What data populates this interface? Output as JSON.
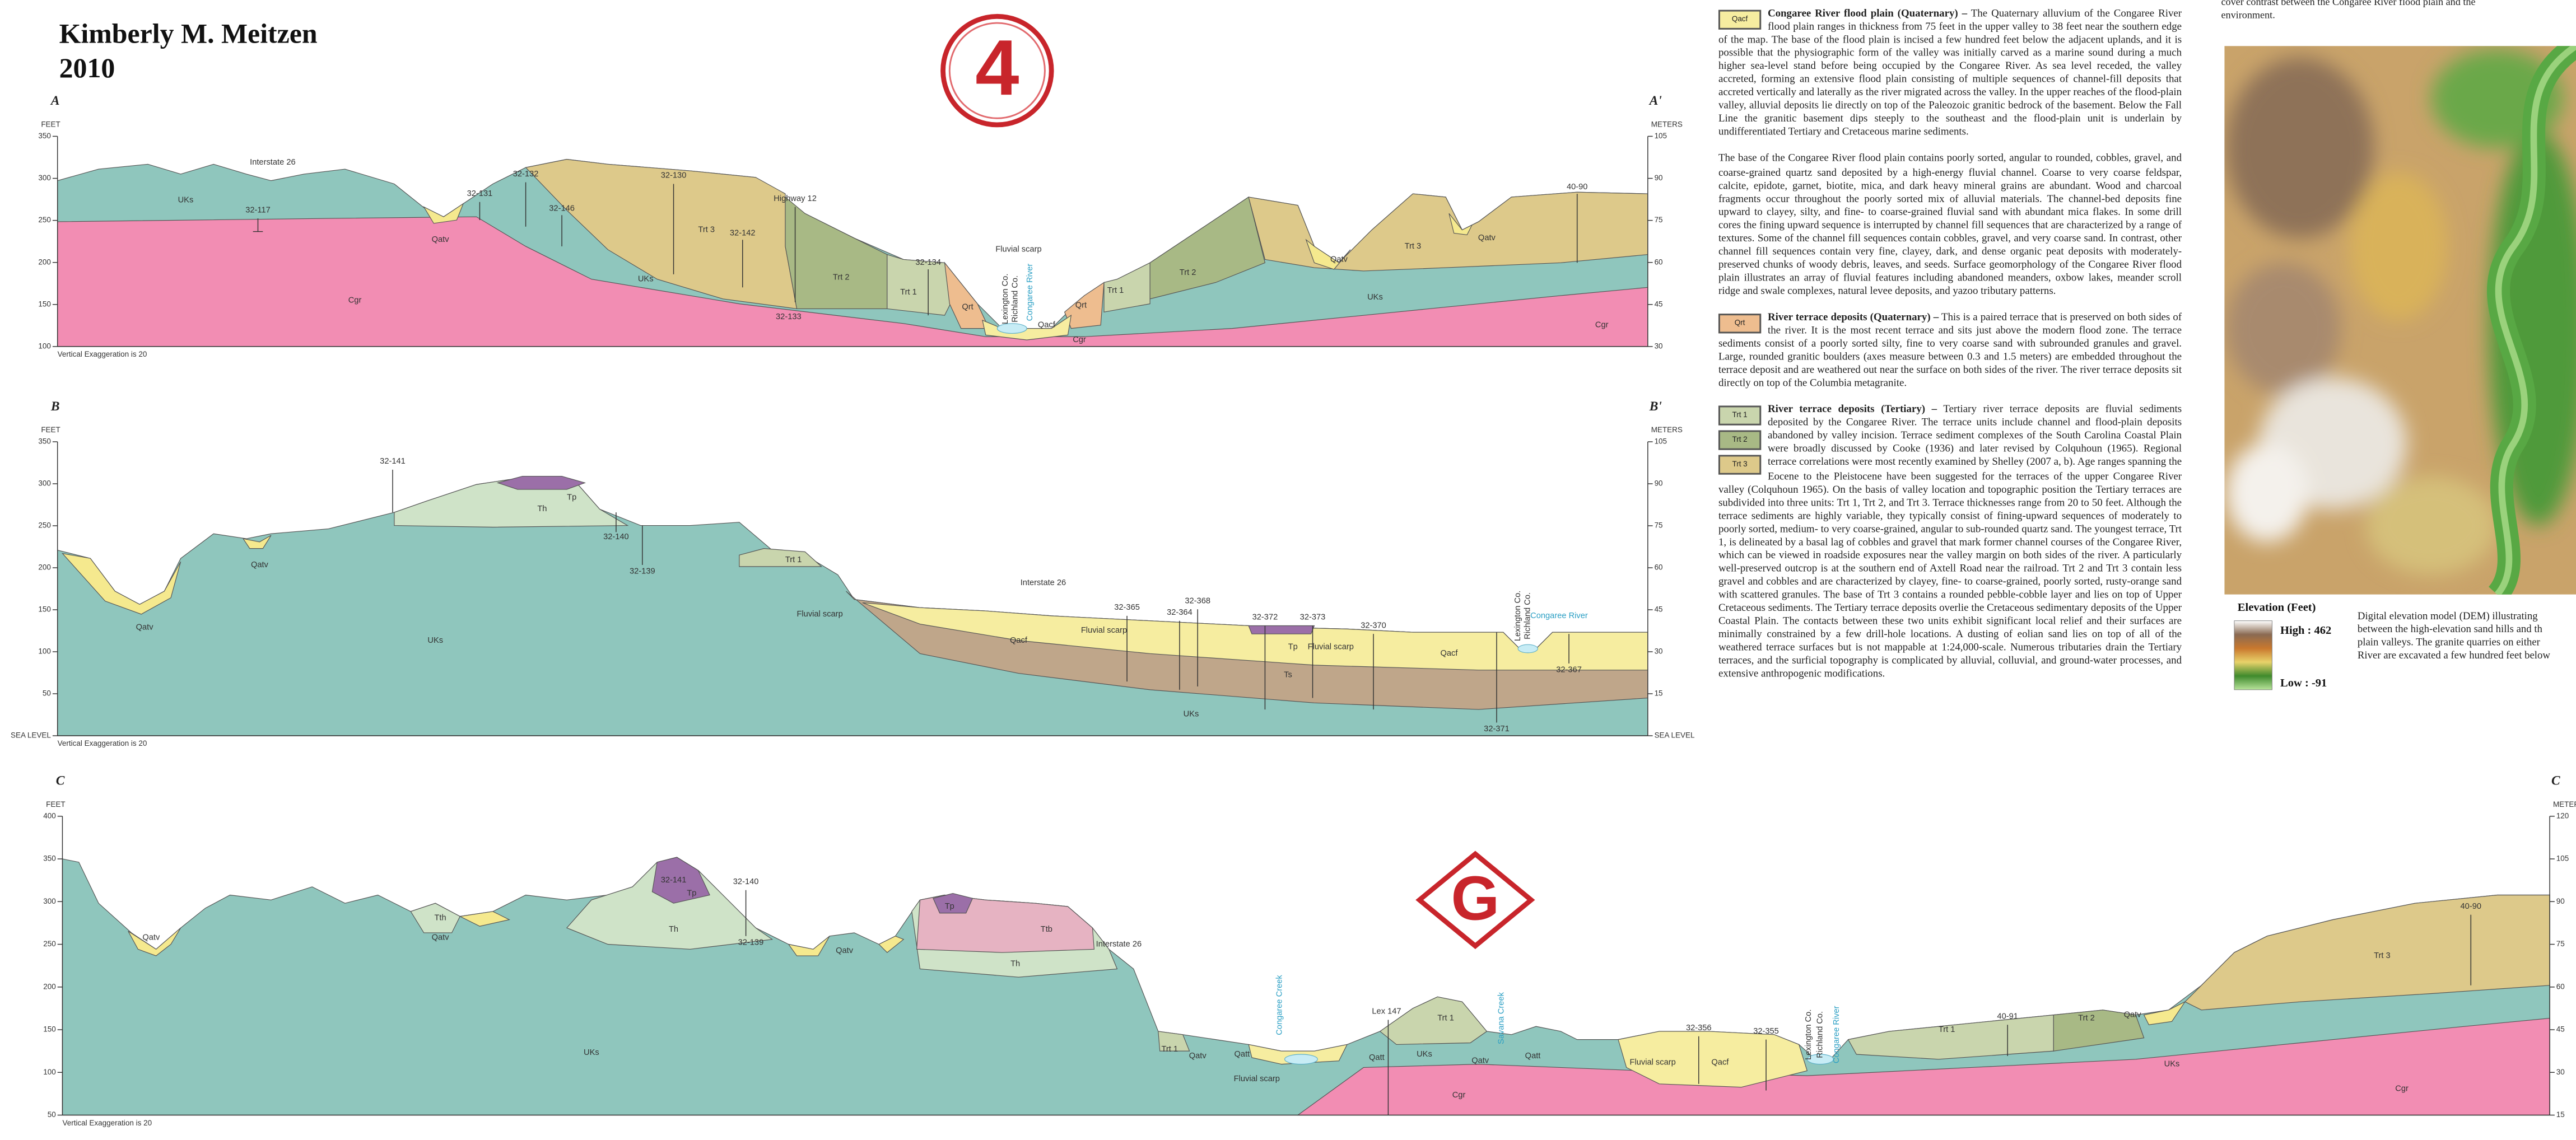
{
  "header": {
    "author": "Kimberly M. Meitzen",
    "year": "2010",
    "badge_top": "4",
    "badge_bottom": "G"
  },
  "sections": [
    {
      "start": "A",
      "end": "A'",
      "left_unit": "FEET",
      "right_unit": "METERS",
      "feet_ticks": [
        350,
        300,
        250,
        200,
        150,
        100
      ],
      "meter_ticks": [
        105,
        90,
        75,
        60,
        45,
        30
      ],
      "note": "Vertical Exaggeration is 20",
      "labels": [
        "Interstate 26",
        "32-117",
        "UKs",
        "Qatv",
        "32-131",
        "32-132",
        "32-146",
        "32-130",
        "Trt 3",
        "32-142",
        "Highway 12",
        "Trt 2",
        "32-133",
        "Trt 1",
        "32-134",
        "Fluvial scarp",
        "Qrt",
        "Qacf",
        "Cgr",
        "Qrt",
        "Trt 1",
        "Trt 2",
        "Qatv",
        "Trt 3",
        "Qatv",
        "40-90",
        "UKs",
        "UKs",
        "Cgr",
        "Cgr",
        "Lexington Co.",
        "Richland Co.",
        "Congaree River"
      ]
    },
    {
      "start": "B",
      "end": "B'",
      "left_unit": "FEET",
      "right_unit": "METERS",
      "feet_ticks": [
        350,
        300,
        250,
        200,
        150,
        100,
        50,
        "SEA LEVEL"
      ],
      "meter_ticks": [
        105,
        90,
        75,
        60,
        45,
        30,
        15,
        "SEA LEVEL"
      ],
      "note": "Vertical Exaggeration is 20",
      "labels": [
        "32-141",
        "Th",
        "Tp",
        "32-140",
        "32-139",
        "Trt 1",
        "Qatv",
        "Qatv",
        "UKs",
        "Fluvial scarp",
        "Interstate 26",
        "32-365",
        "32-364",
        "32-368",
        "Qacf",
        "Fluvial scarp",
        "32-372",
        "32-373",
        "Tp",
        "Fluvial scarp",
        "32-370",
        "Qacf",
        "Ts",
        "UKs",
        "Congaree River",
        "32-367",
        "32-371",
        "Lexington Co.",
        "Richland Co."
      ]
    },
    {
      "start": "C",
      "end": "C",
      "left_unit": "FEET",
      "right_unit": "METERS",
      "feet_ticks": [
        400,
        350,
        300,
        250,
        200,
        150,
        100,
        50
      ],
      "meter_ticks": [
        120,
        105,
        90,
        75,
        60,
        45,
        30,
        15
      ],
      "note": "Vertical Exaggeration is 20",
      "labels": [
        "Qatv",
        "Tth",
        "Qatv",
        "32-141",
        "Tp",
        "Th",
        "32-140",
        "32-139",
        "Qatv",
        "Tp",
        "Ttb",
        "Th",
        "Interstate 26",
        "UKs",
        "Trt 1",
        "Qatv",
        "Qatt",
        "Fluvial scarp",
        "Congaree Creek",
        "Lex 147",
        "Trt 1",
        "UKs",
        "Qatt",
        "Qatv",
        "Qatt",
        "Savana Creek",
        "Cgr",
        "Fluvial scarp",
        "Qacf",
        "32-356",
        "32-355",
        "Lexington Co.",
        "Richland Co.",
        "Congaree River",
        "Trt 1",
        "40-91",
        "Trt 2",
        "Qatv",
        "UKs",
        "Cgr",
        "40-90",
        "Trt 3"
      ]
    }
  ],
  "descriptions": [
    {
      "codes": [
        "Qacf"
      ],
      "heading": "Congaree River flood plain (Quaternary) –",
      "paragraphs": [
        "The Quaternary alluvium of the Congaree River flood plain ranges in thickness from 75 feet in the upper valley to 38 feet near the southern edge of the map. The base of the flood plain is incised a few hundred feet below the adjacent uplands, and it is possible that the physiographic form of the valley was initially carved as a marine sound during a much higher sea-level stand before being occupied by the Congaree River. As sea level receded, the valley accreted, forming an extensive flood plain consisting of multiple sequences of channel-fill deposits that accreted vertically and laterally as the river migrated across the valley. In the upper reaches of the flood-plain valley, alluvial deposits lie directly on top of the Paleozoic granitic bedrock of the basement. Below the Fall Line the granitic basement dips steeply to the southeast and the flood-plain unit is underlain by undifferentiated Tertiary and Cretaceous marine sediments.",
        "The base of the Congaree River flood plain contains poorly sorted, angular to rounded, cobbles, gravel, and coarse-grained quartz sand deposited by a high-energy fluvial channel. Coarse to very coarse feldspar, calcite, epidote, garnet, biotite, mica, and dark heavy mineral grains are abundant. Wood and charcoal fragments occur throughout the poorly sorted mix of alluvial materials. The channel-bed deposits fine upward to clayey, silty, and fine- to coarse-grained fluvial sand with abundant mica flakes. In some drill cores the fining upward sequence is interrupted by channel fill sequences that are characterized by a range of textures. Some of the channel fill sequences contain cobbles, gravel, and very coarse sand. In contrast, other channel fill sequences contain very fine, clayey, dark, and dense organic peat deposits with moderately-preserved chunks of woody debris, leaves, and seeds. Surface geomorphology of the Congaree River flood plain illustrates an array of fluvial features including abandoned meanders, oxbow lakes, meander scroll ridge and swale complexes, natural levee deposits, and yazoo tributary patterns."
      ]
    },
    {
      "codes": [
        "Qrt"
      ],
      "heading": "River terrace deposits (Quaternary) –",
      "paragraphs": [
        "This is a paired terrace that is preserved on both sides of the river. It is the most recent terrace and sits just above the modern flood zone. The terrace sediments consist of a poorly sorted silty, fine to very coarse sand with subrounded granules and gravel. Large, rounded granitic boulders (axes measure between 0.3 and 1.5 meters) are embedded throughout the terrace deposit and are weathered out near the surface on both sides of the river. The river terrace deposits sit directly on top of the Columbia metagranite."
      ]
    },
    {
      "codes": [
        "Trt 1",
        "Trt 2",
        "Trt 3"
      ],
      "heading": "River terrace deposits (Tertiary) –",
      "paragraphs": [
        "Tertiary river terrace deposits are fluvial sediments deposited by the Congaree River. The terrace units include channel and flood-plain deposits abandoned by valley incision. Terrace sediment complexes of the South Carolina Coastal Plain were broadly discussed by Cooke (1936) and later revised by Colquhoun (1965). Regional terrace correlations were most recently examined by Shelley (2007 a, b). Age ranges spanning the Eocene to the Pleistocene have been suggested for the terraces of the upper Congaree River valley (Colquhoun 1965). On the basis of valley location and topographic position the Tertiary terraces are subdivided into three units: Trt 1, Trt 2, and Trt 3. Terrace thicknesses range from 20 to 50 feet. Although the terrace sediments are highly variable, they typically consist of fining-upward sequences of moderately to poorly sorted, medium- to very coarse-grained, angular to sub-rounded quartz sand. The youngest terrace, Trt 1, is delineated by a basal lag of cobbles and gravel that mark former channel courses of the Congaree River, which can be viewed in roadside exposures near the valley margin on both sides of the river. A particularly well-preserved outcrop is at the southern end of Axtell Road near the railroad. Trt 2 and Trt 3 contain less gravel and cobbles and are characterized by clayey, fine- to coarse-grained, poorly sorted, rusty-orange sand with scattered granules. The base of Trt 3 contains a rounded pebble-cobble layer and lies on top of Upper Cretaceous sediments. The Tertiary terrace deposits overlie the Cretaceous sedimentary deposits of the Upper Coastal Plain. The contacts between these two units exhibit significant local relief and their surfaces are minimally constrained by a few drill-hole locations. A dusting of eolian sand lies on top of all of the weathered terrace surfaces but is not mappable at 1:24,000-scale. Numerous tributaries drain the Tertiary terraces, and the surficial topography is complicated by alluvial, colluvial, and ground-water processes, and extensive anthropogenic modifications."
      ]
    }
  ],
  "dem": {
    "top_lines": [
      "cover contrast between the Congaree River flood plain and the",
      "environment."
    ],
    "legend_title": "Elevation (Feet)",
    "high": "High : 462",
    "low": "Low : -91",
    "caption_lines": [
      "Digital elevation model (DEM) illustrating",
      "between the high-elevation sand hills and th",
      "plain valleys. The granite quarries on either",
      "River are excavated a few hundred feet below"
    ]
  }
}
